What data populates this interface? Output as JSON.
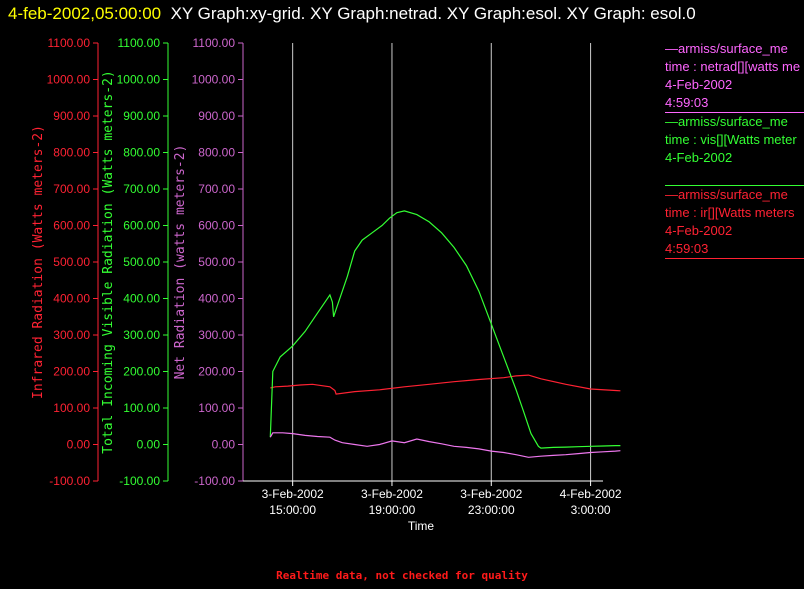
{
  "title": {
    "timestamp": "4-feb-2002,05:00:00",
    "text": "XY Graph:xy-grid.  XY Graph:netrad.  XY Graph:esol.  XY Graph: esol.0"
  },
  "legend": [
    {
      "line1": "—armiss/surface_me",
      "line2": "time : netrad[][watts me",
      "line3": "4-Feb-2002",
      "line4": "4:59:03",
      "color": "#ff66ff"
    },
    {
      "line1": "—armiss/surface_me",
      "line2": "time : vis[][Watts meter",
      "line3": "4-Feb-2002",
      "line4": "",
      "color": "#33ff33"
    },
    {
      "line1": "—armiss/surface_me",
      "line2": "time : ir[][Watts meters",
      "line3": "4-Feb-2002",
      "line4": "4:59:03",
      "color": "#ff2233"
    }
  ],
  "note": "Realtime data, not checked for quality",
  "colors": {
    "ir": "#ff2233",
    "vis": "#33ff33",
    "net": "#ee77ee",
    "axis": "#cc66cc",
    "grid": "#ffffff"
  },
  "chart_data": {
    "type": "line",
    "xlabel": "Time",
    "x_tick_labels": [
      {
        "date": "3-Feb-2002",
        "time": "15:00:00"
      },
      {
        "date": "3-Feb-2002",
        "time": "19:00:00"
      },
      {
        "date": "3-Feb-2002",
        "time": "23:00:00"
      },
      {
        "date": "4-Feb-2002",
        "time": "3:00:00"
      }
    ],
    "x_tick_hours": [
      15,
      19,
      23,
      27
    ],
    "xlim_hours_since_3feb_00": [
      13.0,
      27.5
    ],
    "ylim": [
      -100,
      1100
    ],
    "y_ticks": [
      "-100.00",
      "0.00",
      "100.00",
      "200.00",
      "300.00",
      "400.00",
      "500.00",
      "600.00",
      "700.00",
      "800.00",
      "900.00",
      "1000.00",
      "1100.00"
    ],
    "axes": [
      {
        "id": "ir",
        "label": "Infrared Radiation (Watts meters-2)"
      },
      {
        "id": "vis",
        "label": "Total Incoming Visible Radiation (Watts meters-2)"
      },
      {
        "id": "net",
        "label": "Net Radiation (watts meters-2)"
      }
    ],
    "series": [
      {
        "id": "ir",
        "x": [
          14.1,
          14.3,
          14.8,
          15.3,
          15.8,
          16.5,
          16.7,
          16.75,
          17.5,
          18.5,
          19.5,
          20.5,
          21.5,
          22.5,
          23.5,
          24.0,
          24.5,
          25.0,
          26.0,
          27.0,
          28.0,
          28.2
        ],
        "y": [
          155,
          158,
          160,
          163,
          165,
          158,
          148,
          138,
          145,
          150,
          158,
          165,
          172,
          178,
          183,
          188,
          190,
          180,
          165,
          152,
          148,
          147
        ]
      },
      {
        "id": "vis",
        "x": [
          14.1,
          14.2,
          14.5,
          15.0,
          15.5,
          16.0,
          16.5,
          16.6,
          16.65,
          16.8,
          17.2,
          17.5,
          17.8,
          18.2,
          18.6,
          18.9,
          19.2,
          19.5,
          20.0,
          20.5,
          21.0,
          21.5,
          22.0,
          22.5,
          23.0,
          23.5,
          24.0,
          24.3,
          24.6,
          24.9,
          25.0,
          25.5,
          26.0,
          26.5,
          27.0,
          27.5,
          28.0,
          28.2
        ],
        "y": [
          20,
          200,
          240,
          270,
          310,
          360,
          410,
          390,
          350,
          380,
          460,
          530,
          560,
          580,
          600,
          620,
          635,
          640,
          630,
          610,
          580,
          540,
          490,
          420,
          330,
          240,
          150,
          90,
          30,
          -5,
          -10,
          -8,
          -7,
          -6,
          -5,
          -4,
          -3,
          -3
        ]
      },
      {
        "id": "net",
        "x": [
          14.1,
          14.2,
          14.6,
          15.0,
          15.5,
          16.0,
          16.5,
          16.7,
          17.0,
          17.5,
          18.0,
          18.5,
          19.0,
          19.5,
          20.0,
          20.5,
          21.0,
          21.5,
          22.0,
          22.5,
          23.0,
          23.5,
          24.0,
          24.5,
          25.0,
          25.5,
          26.0,
          26.5,
          27.0,
          27.5,
          28.0,
          28.2
        ],
        "y": [
          20,
          32,
          32,
          30,
          25,
          22,
          20,
          12,
          5,
          0,
          -5,
          0,
          10,
          5,
          15,
          8,
          2,
          -5,
          -8,
          -12,
          -18,
          -22,
          -28,
          -35,
          -32,
          -30,
          -28,
          -25,
          -22,
          -20,
          -18,
          -17
        ]
      }
    ]
  }
}
